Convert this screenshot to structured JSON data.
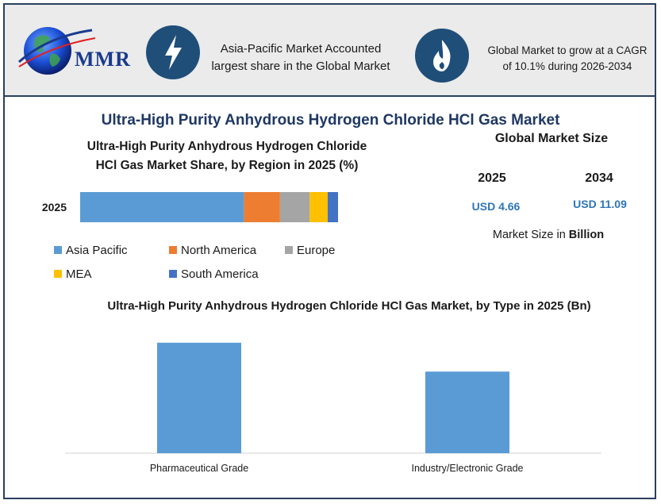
{
  "header": {
    "logo_text": "MMR",
    "card1": {
      "icon": "lightning-bolt-icon",
      "text": "Asia-Pacific Market Accounted largest share in the Global Market"
    },
    "card2": {
      "icon": "flame-icon",
      "text": "Global Market to grow at a CAGR of 10.1% during 2026-2034"
    }
  },
  "main_title": "Ultra-High Purity Anhydrous Hydrogen Chloride HCl Gas Market",
  "market_size": {
    "title": "Global Market Size",
    "year1": "2025",
    "value1": "USD 4.66",
    "year2": "2034",
    "value2": "USD 11.09",
    "unit_prefix": "Market Size in ",
    "unit_bold": "Billion"
  },
  "colors": {
    "asia_pacific": "#5b9bd5",
    "north_america": "#ed7d31",
    "europe": "#a5a5a5",
    "mea": "#ffc000",
    "south_america": "#4472c4",
    "type_bars": "#5b9bd5",
    "title_navy": "#1f3864",
    "icon_navy": "#1f4e79"
  },
  "chart_data": [
    {
      "type": "bar",
      "orientation": "horizontal-stacked",
      "title": "Ultra-High Purity Anhydrous Hydrogen Chloride HCl Gas Market Share, by Region in 2025 (%)",
      "categories": [
        "2025"
      ],
      "series": [
        {
          "name": "Asia Pacific",
          "values": [
            63.5
          ]
        },
        {
          "name": "North America",
          "values": [
            14
          ]
        },
        {
          "name": "Europe",
          "values": [
            11.5
          ]
        },
        {
          "name": "MEA",
          "values": [
            7
          ]
        },
        {
          "name": "South America",
          "values": [
            4
          ]
        }
      ],
      "xlim": [
        0,
        100
      ],
      "legend": "bottom"
    },
    {
      "type": "bar",
      "title": "Ultra-High Purity Anhydrous Hydrogen Chloride HCl Gas Market, by Type in 2025 (Bn)",
      "categories": [
        "Pharmaceutical Grade",
        "Industry/Electronic Grade"
      ],
      "values": [
        2.68,
        1.98
      ],
      "ylim": [
        0,
        3.1
      ],
      "grid": false
    }
  ]
}
